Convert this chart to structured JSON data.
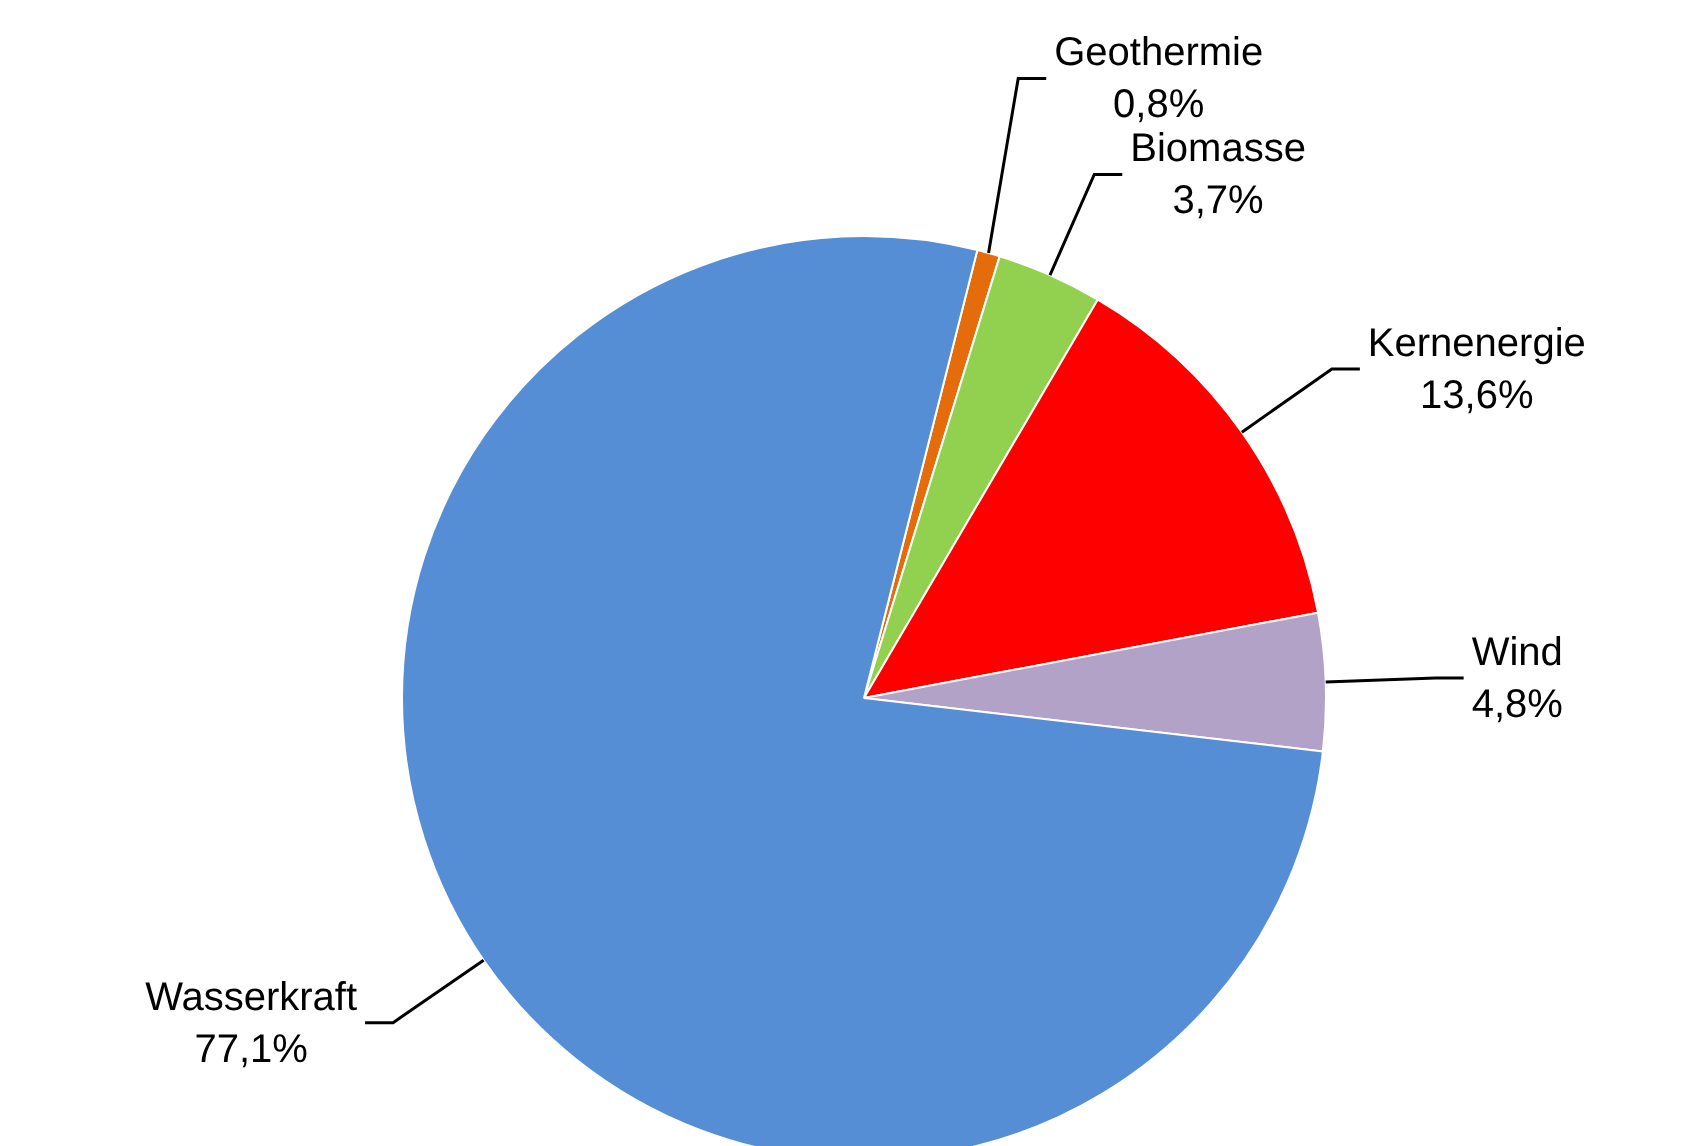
{
  "chart_data": {
    "type": "pie",
    "categories": [
      "Geothermie",
      "Biomasse",
      "Kernenergie",
      "Wind",
      "Wasserkraft"
    ],
    "values": [
      0.8,
      3.7,
      13.6,
      4.8,
      77.1
    ],
    "colors": [
      "#e46c0a",
      "#92d050",
      "#ff0000",
      "#b3a2c7",
      "#558ed5"
    ],
    "value_labels": [
      "0,8%",
      "3,7%",
      "13,6%",
      "4,8%",
      "77,1%"
    ],
    "legend": false
  }
}
